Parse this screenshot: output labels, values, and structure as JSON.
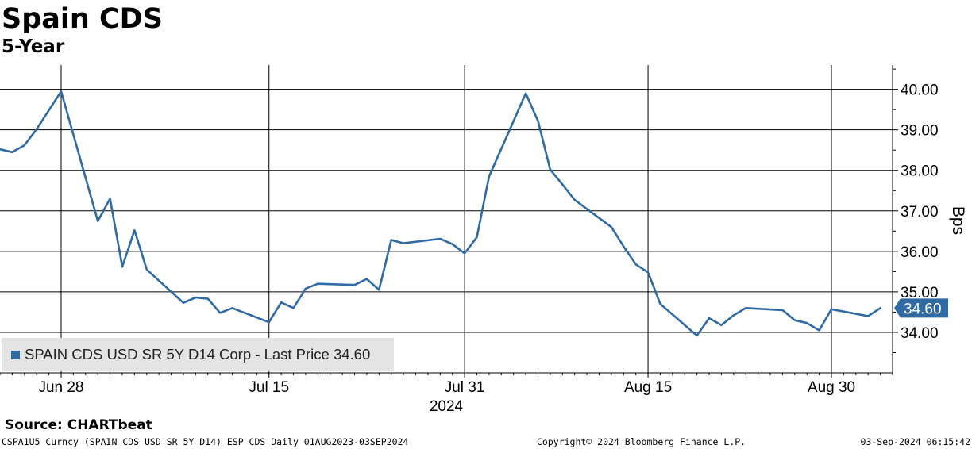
{
  "title": "Spain CDS",
  "subtitle": "5-Year",
  "source": "Source: CHARTbeat",
  "footer": {
    "left": "CSPA1U5 Curncy (SPAIN CDS USD SR 5Y D14) ESP CDS  Daily 01AUG2023-03SEP2024",
    "middle": "Copyright© 2024 Bloomberg Finance L.P.",
    "right": "03-Sep-2024 06:15:42"
  },
  "legend": {
    "label": "SPAIN CDS USD SR 5Y D14 Corp - Last Price 34.60"
  },
  "colors": {
    "series": "#2f6aa3",
    "grid": "#000000",
    "legend_bg": "#e4e4e4",
    "last_price_badge": "#2f6aa3"
  },
  "chart_data": {
    "type": "line",
    "title": "Spain CDS",
    "subtitle": "5-Year",
    "ylabel": "Bps",
    "xlabel": "",
    "year_label": "2024",
    "ylim": [
      33,
      40.6
    ],
    "y_ticks": [
      34,
      35,
      36,
      37,
      38,
      39,
      40
    ],
    "y_tick_labels": [
      "34.00",
      "35.00",
      "36.00",
      "37.00",
      "38.00",
      "39.00",
      "40.00"
    ],
    "x_ticks": [
      "2024-06-28",
      "2024-07-15",
      "2024-07-31",
      "2024-08-15",
      "2024-08-30"
    ],
    "x_tick_labels": [
      "Jun 28",
      "Jul 15",
      "Jul 31",
      "Aug 15",
      "Aug 30"
    ],
    "x_range": [
      "2024-06-23",
      "2024-09-04"
    ],
    "last_price": 34.6,
    "last_price_label": "34.60",
    "grid": true,
    "legend_position": "bottom-left",
    "series": [
      {
        "name": "SPAIN CDS USD SR 5Y D14 Corp",
        "points": [
          [
            "2024-06-23",
            38.52
          ],
          [
            "2024-06-24",
            38.45
          ],
          [
            "2024-06-25",
            38.62
          ],
          [
            "2024-06-26",
            39.02
          ],
          [
            "2024-06-28",
            39.95
          ],
          [
            "2024-07-01",
            36.75
          ],
          [
            "2024-07-02",
            37.3
          ],
          [
            "2024-07-03",
            35.62
          ],
          [
            "2024-07-04",
            36.52
          ],
          [
            "2024-07-05",
            35.55
          ],
          [
            "2024-07-08",
            34.73
          ],
          [
            "2024-07-09",
            34.86
          ],
          [
            "2024-07-10",
            34.83
          ],
          [
            "2024-07-11",
            34.48
          ],
          [
            "2024-07-12",
            34.6
          ],
          [
            "2024-07-15",
            34.25
          ],
          [
            "2024-07-16",
            34.74
          ],
          [
            "2024-07-17",
            34.6
          ],
          [
            "2024-07-18",
            35.08
          ],
          [
            "2024-07-19",
            35.2
          ],
          [
            "2024-07-22",
            35.17
          ],
          [
            "2024-07-23",
            35.32
          ],
          [
            "2024-07-24",
            35.05
          ],
          [
            "2024-07-25",
            36.28
          ],
          [
            "2024-07-26",
            36.2
          ],
          [
            "2024-07-29",
            36.31
          ],
          [
            "2024-07-30",
            36.18
          ],
          [
            "2024-07-31",
            35.95
          ],
          [
            "2024-08-01",
            36.35
          ],
          [
            "2024-08-02",
            37.85
          ],
          [
            "2024-08-05",
            39.9
          ],
          [
            "2024-08-06",
            39.22
          ],
          [
            "2024-08-07",
            38.02
          ],
          [
            "2024-08-08",
            37.65
          ],
          [
            "2024-08-09",
            37.27
          ],
          [
            "2024-08-12",
            36.6
          ],
          [
            "2024-08-13",
            36.12
          ],
          [
            "2024-08-14",
            35.68
          ],
          [
            "2024-08-15",
            35.48
          ],
          [
            "2024-08-16",
            34.7
          ],
          [
            "2024-08-19",
            33.92
          ],
          [
            "2024-08-20",
            34.35
          ],
          [
            "2024-08-21",
            34.18
          ],
          [
            "2024-08-22",
            34.42
          ],
          [
            "2024-08-23",
            34.6
          ],
          [
            "2024-08-26",
            34.55
          ],
          [
            "2024-08-27",
            34.3
          ],
          [
            "2024-08-28",
            34.23
          ],
          [
            "2024-08-29",
            34.05
          ],
          [
            "2024-08-30",
            34.57
          ],
          [
            "2024-09-02",
            34.4
          ],
          [
            "2024-09-03",
            34.6
          ]
        ]
      }
    ]
  }
}
